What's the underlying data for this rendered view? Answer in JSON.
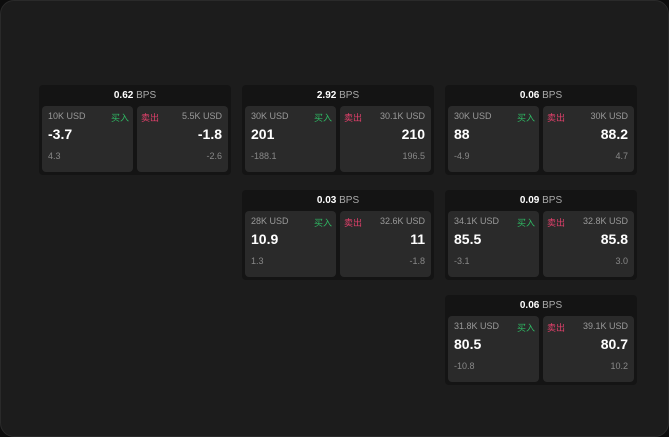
{
  "labels": {
    "bps": "BPS",
    "buy": "买入",
    "sell": "卖出"
  },
  "colors": {
    "buy": "#2fb863",
    "sell": "#e0406b"
  },
  "quotes": [
    {
      "spread": "0.62",
      "buy": {
        "amount": "10K USD",
        "price": "-3.7",
        "change": "4.3"
      },
      "sell": {
        "amount": "5.5K USD",
        "price": "-1.8",
        "change": "-2.6"
      }
    },
    {
      "spread": "2.92",
      "buy": {
        "amount": "30K USD",
        "price": "201",
        "change": "-188.1"
      },
      "sell": {
        "amount": "30.1K USD",
        "price": "210",
        "change": "196.5"
      }
    },
    {
      "spread": "0.06",
      "buy": {
        "amount": "30K USD",
        "price": "88",
        "change": "-4.9"
      },
      "sell": {
        "amount": "30K USD",
        "price": "88.2",
        "change": "4.7"
      }
    },
    {
      "spread": "0.03",
      "buy": {
        "amount": "28K USD",
        "price": "10.9",
        "change": "1.3"
      },
      "sell": {
        "amount": "32.6K USD",
        "price": "11",
        "change": "-1.8"
      }
    },
    {
      "spread": "0.09",
      "buy": {
        "amount": "34.1K USD",
        "price": "85.5",
        "change": "-3.1"
      },
      "sell": {
        "amount": "32.8K USD",
        "price": "85.8",
        "change": "3.0"
      }
    },
    {
      "spread": "0.06",
      "buy": {
        "amount": "31.8K USD",
        "price": "80.5",
        "change": "-10.8"
      },
      "sell": {
        "amount": "39.1K USD",
        "price": "80.7",
        "change": "10.2"
      }
    }
  ]
}
